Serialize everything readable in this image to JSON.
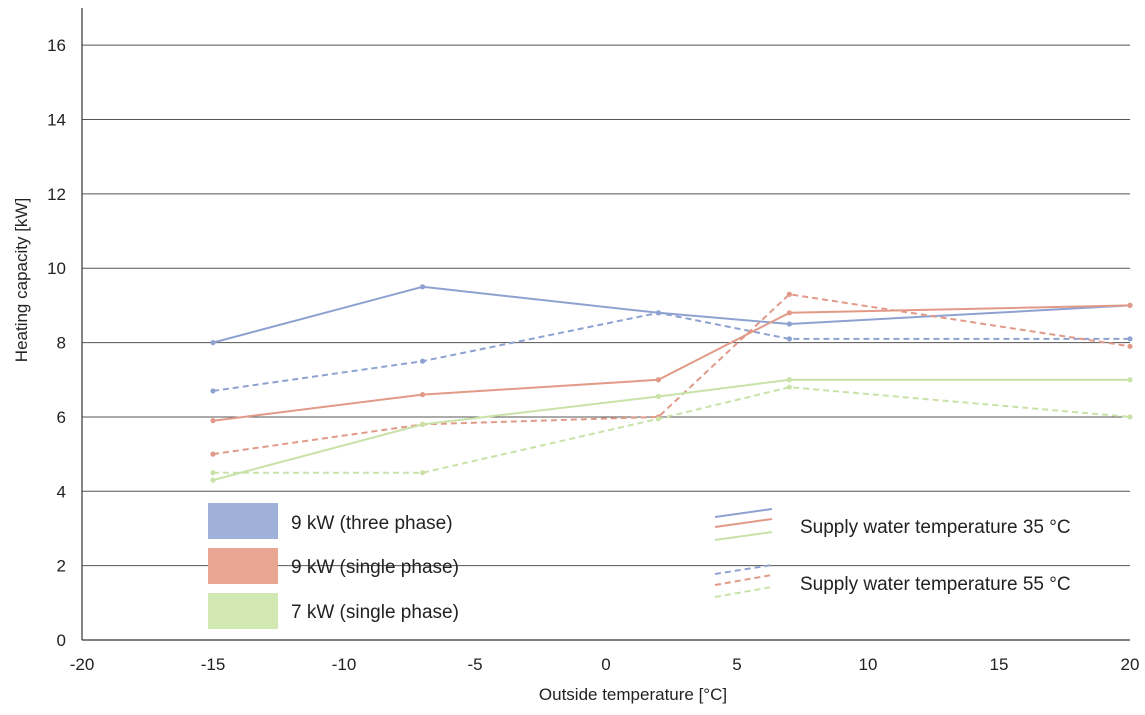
{
  "chart_data": {
    "type": "line",
    "xlabel": "Outside temperature [°C]",
    "ylabel": "Heating capacity [kW]",
    "xlim": [
      -20,
      20
    ],
    "ylim": [
      0,
      17
    ],
    "xticks": [
      "-20",
      "-15",
      "-10",
      "-5",
      "0",
      "5",
      "10",
      "15",
      "20"
    ],
    "yticks": [
      "0",
      "2",
      "4",
      "6",
      "8",
      "10",
      "12",
      "14",
      "16"
    ],
    "grid": "horizontal",
    "series": [
      {
        "name": "9 kW (three phase)",
        "style": "solid",
        "color": "#8EA2D1",
        "points": [
          [
            -15,
            8.0
          ],
          [
            -7,
            9.5
          ],
          [
            2,
            8.8
          ],
          [
            7,
            8.5
          ],
          [
            20,
            9.0
          ]
        ]
      },
      {
        "name": "9 kW (three phase)",
        "style": "dashed",
        "color": "#8EA2D1",
        "points": [
          [
            -15,
            6.7
          ],
          [
            -7,
            7.5
          ],
          [
            2,
            8.8
          ],
          [
            7,
            8.1
          ],
          [
            20,
            8.1
          ]
        ]
      },
      {
        "name": "9 kW (single phase)",
        "style": "solid",
        "color": "#E29A88",
        "points": [
          [
            -15,
            5.9
          ],
          [
            -7,
            6.6
          ],
          [
            2,
            7.0
          ],
          [
            7,
            8.8
          ],
          [
            20,
            9.0
          ]
        ]
      },
      {
        "name": "9 kW (single phase)",
        "style": "dashed",
        "color": "#E29A88",
        "points": [
          [
            -15,
            5.0
          ],
          [
            -7,
            5.8
          ],
          [
            2,
            6.0
          ],
          [
            7,
            9.3
          ],
          [
            20,
            7.9
          ]
        ]
      },
      {
        "name": "7 kW (single phase)",
        "style": "solid",
        "color": "#C9E2A8",
        "points": [
          [
            -15,
            4.3
          ],
          [
            -7,
            5.8
          ],
          [
            2,
            6.55
          ],
          [
            7,
            7.0
          ],
          [
            20,
            7.0
          ]
        ]
      },
      {
        "name": "7 kW (single phase)",
        "style": "dashed",
        "color": "#C9E2A8",
        "points": [
          [
            -15,
            4.5
          ],
          [
            -7,
            4.5
          ],
          [
            2,
            5.95
          ],
          [
            7,
            6.8
          ],
          [
            20,
            6.0
          ]
        ]
      }
    ],
    "legend": {
      "models": [
        {
          "label": "9 kW (three phase)",
          "color": "#9FB0D9"
        },
        {
          "label": "9 kW (single phase)",
          "color": "#E7A592"
        },
        {
          "label": "7 kW (single phase)",
          "color": "#D2E8B2"
        }
      ],
      "line_styles": [
        {
          "label": "Supply water temperature 35 °C",
          "style": "solid"
        },
        {
          "label": "Supply water temperature 55 °C",
          "style": "dashed"
        }
      ]
    }
  }
}
